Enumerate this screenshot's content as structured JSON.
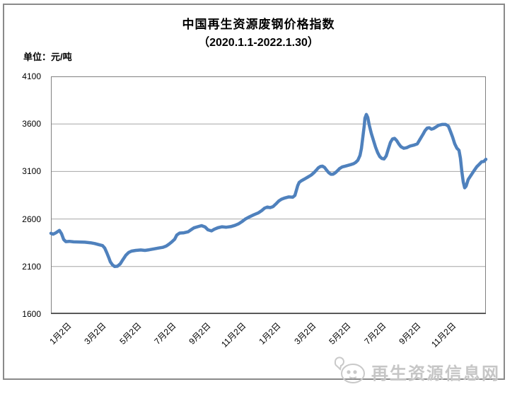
{
  "header": {
    "title": "中国再生资源废钢价格指数",
    "subtitle": "（2020.1.1-2022.1.30）",
    "unit_label": "单位：元/吨"
  },
  "watermark": {
    "text": "再生资源信息网",
    "logo_icon": "chat-bubble-face-logo",
    "color": "#c6c6c6"
  },
  "colors": {
    "line": "#4F81BD",
    "gridline": "#a6a6a6",
    "plot_border": "#808080",
    "axis_line": "#595959",
    "frame_border": "#8a8a8a",
    "background": "#ffffff"
  },
  "chart_data": {
    "type": "line",
    "title": "中国再生资源废钢价格指数（2020.1.1-2022.1.30）",
    "xlabel": "",
    "ylabel": "元/吨",
    "ylim": [
      1600,
      4100
    ],
    "y_ticks": [
      4100,
      3600,
      3100,
      2600,
      2100,
      1600
    ],
    "x_tick_labels": [
      "1月2日",
      "3月2日",
      "5月2日",
      "7月2日",
      "9月2日",
      "11月2日",
      "1月2日",
      "3月2日",
      "5月2日",
      "7月2日",
      "9月2日",
      "11月2日"
    ],
    "grid": true,
    "legend_position": "none",
    "series_name": "废钢价格指数",
    "line_color": "#4F81BD",
    "points": [
      [
        0,
        2450
      ],
      [
        3,
        2440
      ],
      [
        7,
        2455
      ],
      [
        12,
        2480
      ],
      [
        15,
        2445
      ],
      [
        18,
        2385
      ],
      [
        21,
        2362
      ],
      [
        26,
        2365
      ],
      [
        32,
        2360
      ],
      [
        40,
        2358
      ],
      [
        48,
        2356
      ],
      [
        56,
        2350
      ],
      [
        62,
        2342
      ],
      [
        68,
        2330
      ],
      [
        73,
        2320
      ],
      [
        76,
        2295
      ],
      [
        79,
        2245
      ],
      [
        82,
        2190
      ],
      [
        84,
        2150
      ],
      [
        87,
        2118
      ],
      [
        90,
        2100
      ],
      [
        94,
        2103
      ],
      [
        98,
        2128
      ],
      [
        102,
        2175
      ],
      [
        106,
        2220
      ],
      [
        110,
        2248
      ],
      [
        114,
        2262
      ],
      [
        120,
        2270
      ],
      [
        127,
        2274
      ],
      [
        133,
        2270
      ],
      [
        139,
        2276
      ],
      [
        146,
        2286
      ],
      [
        152,
        2294
      ],
      [
        158,
        2302
      ],
      [
        163,
        2315
      ],
      [
        167,
        2336
      ],
      [
        171,
        2360
      ],
      [
        175,
        2388
      ],
      [
        178,
        2432
      ],
      [
        182,
        2452
      ],
      [
        188,
        2455
      ],
      [
        194,
        2465
      ],
      [
        198,
        2486
      ],
      [
        202,
        2506
      ],
      [
        208,
        2520
      ],
      [
        213,
        2530
      ],
      [
        218,
        2516
      ],
      [
        222,
        2486
      ],
      [
        227,
        2475
      ],
      [
        231,
        2492
      ],
      [
        236,
        2508
      ],
      [
        242,
        2518
      ],
      [
        248,
        2514
      ],
      [
        254,
        2520
      ],
      [
        260,
        2532
      ],
      [
        265,
        2548
      ],
      [
        270,
        2572
      ],
      [
        275,
        2600
      ],
      [
        281,
        2624
      ],
      [
        287,
        2645
      ],
      [
        293,
        2663
      ],
      [
        298,
        2688
      ],
      [
        302,
        2714
      ],
      [
        306,
        2726
      ],
      [
        310,
        2720
      ],
      [
        314,
        2730
      ],
      [
        318,
        2758
      ],
      [
        322,
        2788
      ],
      [
        326,
        2808
      ],
      [
        331,
        2822
      ],
      [
        336,
        2832
      ],
      [
        342,
        2830
      ],
      [
        345,
        2848
      ],
      [
        347,
        2900
      ],
      [
        349,
        2952
      ],
      [
        351,
        2985
      ],
      [
        354,
        3002
      ],
      [
        358,
        3018
      ],
      [
        363,
        3040
      ],
      [
        368,
        3062
      ],
      [
        372,
        3088
      ],
      [
        375,
        3112
      ],
      [
        378,
        3138
      ],
      [
        381,
        3152
      ],
      [
        384,
        3156
      ],
      [
        387,
        3142
      ],
      [
        390,
        3112
      ],
      [
        393,
        3086
      ],
      [
        396,
        3070
      ],
      [
        399,
        3072
      ],
      [
        402,
        3086
      ],
      [
        405,
        3106
      ],
      [
        408,
        3130
      ],
      [
        412,
        3148
      ],
      [
        416,
        3156
      ],
      [
        420,
        3164
      ],
      [
        424,
        3172
      ],
      [
        428,
        3182
      ],
      [
        431,
        3196
      ],
      [
        434,
        3218
      ],
      [
        437,
        3268
      ],
      [
        439,
        3340
      ],
      [
        441,
        3460
      ],
      [
        443,
        3580
      ],
      [
        444,
        3660
      ],
      [
        446,
        3700
      ],
      [
        448,
        3668
      ],
      [
        450,
        3590
      ],
      [
        453,
        3500
      ],
      [
        456,
        3428
      ],
      [
        459,
        3356
      ],
      [
        462,
        3298
      ],
      [
        465,
        3256
      ],
      [
        468,
        3236
      ],
      [
        471,
        3232
      ],
      [
        474,
        3262
      ],
      [
        477,
        3335
      ],
      [
        480,
        3405
      ],
      [
        483,
        3442
      ],
      [
        486,
        3448
      ],
      [
        489,
        3424
      ],
      [
        492,
        3388
      ],
      [
        495,
        3360
      ],
      [
        499,
        3344
      ],
      [
        503,
        3350
      ],
      [
        508,
        3368
      ],
      [
        513,
        3377
      ],
      [
        518,
        3390
      ],
      [
        522,
        3440
      ],
      [
        526,
        3490
      ],
      [
        529,
        3530
      ],
      [
        532,
        3556
      ],
      [
        535,
        3560
      ],
      [
        538,
        3545
      ],
      [
        541,
        3552
      ],
      [
        544,
        3566
      ],
      [
        548,
        3585
      ],
      [
        553,
        3595
      ],
      [
        558,
        3595
      ],
      [
        562,
        3576
      ],
      [
        565,
        3520
      ],
      [
        568,
        3460
      ],
      [
        571,
        3390
      ],
      [
        574,
        3345
      ],
      [
        577,
        3322
      ],
      [
        579,
        3240
      ],
      [
        581,
        3100
      ],
      [
        583,
        2990
      ],
      [
        585,
        2928
      ],
      [
        587,
        2945
      ],
      [
        590,
        3015
      ],
      [
        594,
        3060
      ],
      [
        598,
        3105
      ],
      [
        602,
        3148
      ],
      [
        606,
        3178
      ],
      [
        609,
        3202
      ],
      [
        612,
        3205
      ],
      [
        615,
        3228
      ]
    ]
  }
}
